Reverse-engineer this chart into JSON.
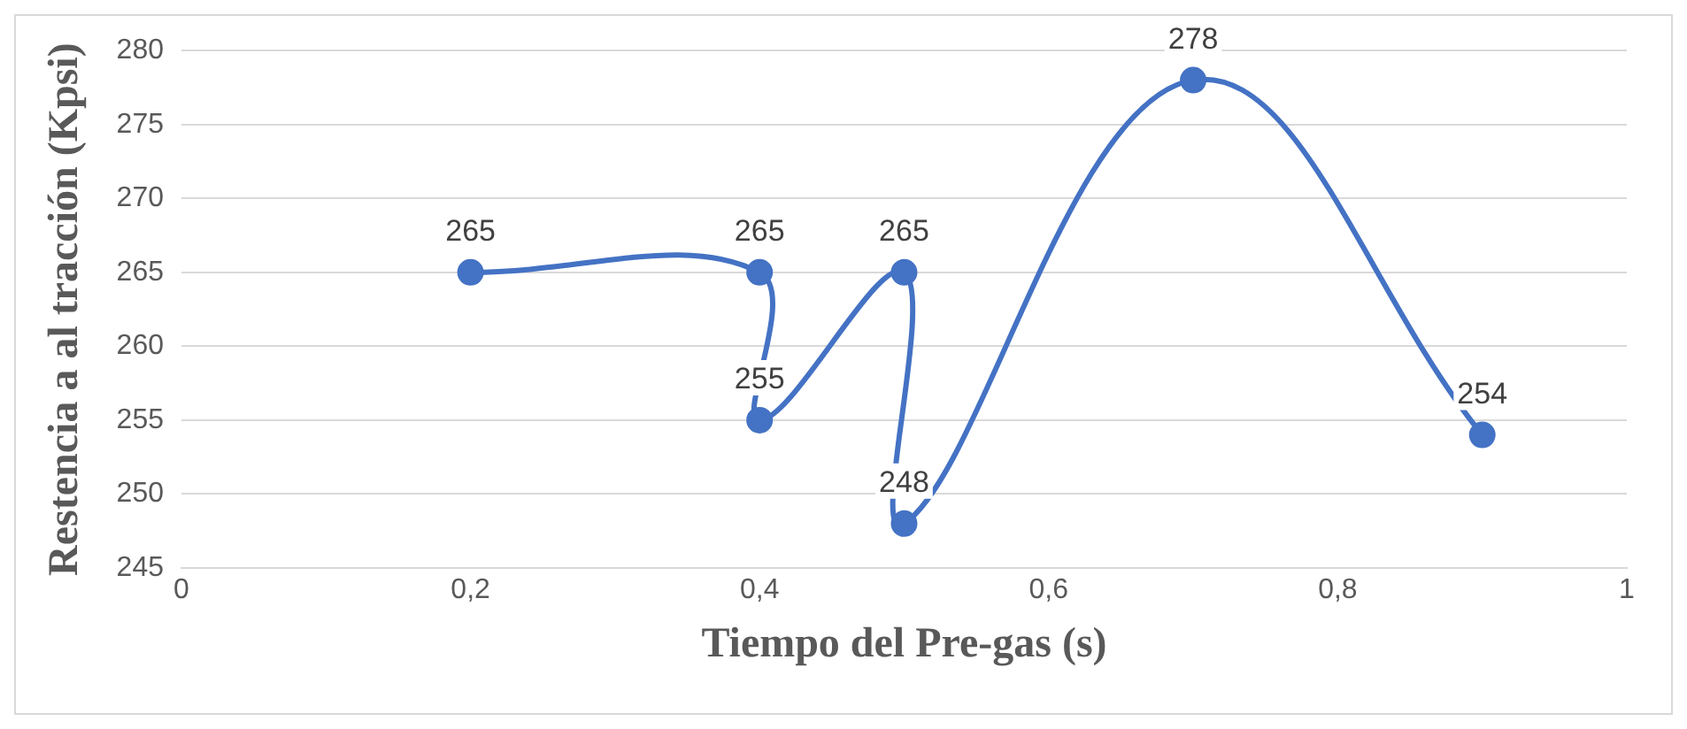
{
  "chart_data": {
    "type": "line",
    "xlabel": "Tiempo del Pre-gas (s)",
    "ylabel": "Restencia a al tracción (Kpsi)",
    "x": [
      0.2,
      0.4,
      0.4,
      0.5,
      0.5,
      0.7,
      0.9
    ],
    "series": [
      {
        "color": "#4472c4",
        "values": [
          265,
          265,
          255,
          265,
          248,
          278,
          254
        ]
      }
    ],
    "xlim": [
      0,
      1
    ],
    "xticks": [
      0,
      {
        "value": 0.2,
        "label": "0,2"
      },
      {
        "value": 0.4,
        "label": "0,4"
      },
      {
        "value": 0.6,
        "label": "0,6"
      },
      {
        "value": 0.8,
        "label": "0,8"
      },
      1
    ],
    "ylim": [
      245,
      280
    ],
    "yticks": [
      245,
      250,
      255,
      260,
      265,
      270,
      275,
      280
    ],
    "grid": "y",
    "legend": false,
    "marker": "circle",
    "line_style": "solid",
    "data_labels": true
  }
}
